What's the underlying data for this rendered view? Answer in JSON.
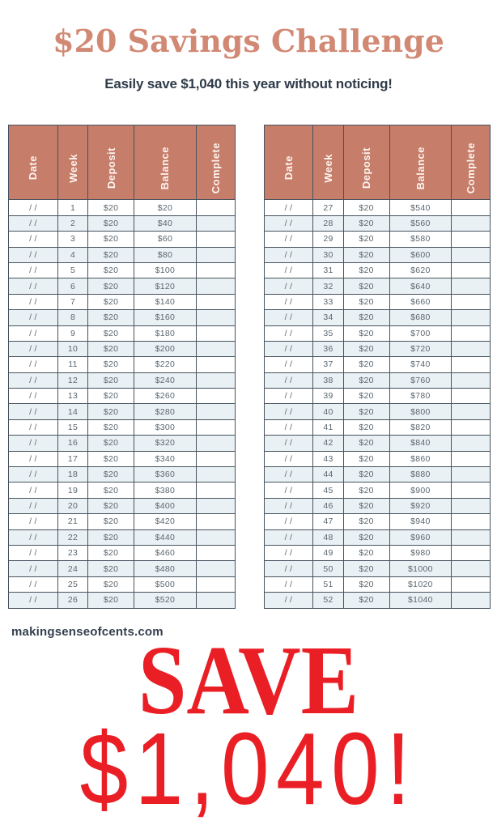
{
  "page": {
    "title": "$20 Savings Challenge",
    "subtitle": "Easily save $1,040 this year without noticing!",
    "website": "makingsenseofcents.com",
    "save_word": "SAVE",
    "save_amount": "$1,040!"
  },
  "colors": {
    "title_salmon": "#d28974",
    "header_salmon": "#c67d6a",
    "navy_text": "#2f3b49",
    "cell_text": "#5b6770",
    "row_alt": "#eaf1f4",
    "table_border": "#46535f",
    "red": "#ea1f25",
    "header_label_text": "#fdf4ef"
  },
  "tables": {
    "headers": [
      "Date",
      "Week",
      "Deposit",
      "Balance",
      "Complete"
    ],
    "column_widths": [
      "21.8%",
      "13.3%",
      "20.4%",
      "27.4%",
      "17.1%"
    ],
    "date_placeholder": "/ /",
    "left": {
      "rows": [
        {
          "date": "/ /",
          "week": "1",
          "deposit": "$20",
          "balance": "$20",
          "complete": ""
        },
        {
          "date": "/ /",
          "week": "2",
          "deposit": "$20",
          "balance": "$40",
          "complete": ""
        },
        {
          "date": "/ /",
          "week": "3",
          "deposit": "$20",
          "balance": "$60",
          "complete": ""
        },
        {
          "date": "/ /",
          "week": "4",
          "deposit": "$20",
          "balance": "$80",
          "complete": ""
        },
        {
          "date": "/ /",
          "week": "5",
          "deposit": "$20",
          "balance": "$100",
          "complete": ""
        },
        {
          "date": "/ /",
          "week": "6",
          "deposit": "$20",
          "balance": "$120",
          "complete": ""
        },
        {
          "date": "/ /",
          "week": "7",
          "deposit": "$20",
          "balance": "$140",
          "complete": ""
        },
        {
          "date": "/ /",
          "week": "8",
          "deposit": "$20",
          "balance": "$160",
          "complete": ""
        },
        {
          "date": "/ /",
          "week": "9",
          "deposit": "$20",
          "balance": "$180",
          "complete": ""
        },
        {
          "date": "/ /",
          "week": "10",
          "deposit": "$20",
          "balance": "$200",
          "complete": ""
        },
        {
          "date": "/ /",
          "week": "11",
          "deposit": "$20",
          "balance": "$220",
          "complete": ""
        },
        {
          "date": "/ /",
          "week": "12",
          "deposit": "$20",
          "balance": "$240",
          "complete": ""
        },
        {
          "date": "/ /",
          "week": "13",
          "deposit": "$20",
          "balance": "$260",
          "complete": ""
        },
        {
          "date": "/ /",
          "week": "14",
          "deposit": "$20",
          "balance": "$280",
          "complete": ""
        },
        {
          "date": "/ /",
          "week": "15",
          "deposit": "$20",
          "balance": "$300",
          "complete": ""
        },
        {
          "date": "/ /",
          "week": "16",
          "deposit": "$20",
          "balance": "$320",
          "complete": ""
        },
        {
          "date": "/ /",
          "week": "17",
          "deposit": "$20",
          "balance": "$340",
          "complete": ""
        },
        {
          "date": "/ /",
          "week": "18",
          "deposit": "$20",
          "balance": "$360",
          "complete": ""
        },
        {
          "date": "/ /",
          "week": "19",
          "deposit": "$20",
          "balance": "$380",
          "complete": ""
        },
        {
          "date": "/ /",
          "week": "20",
          "deposit": "$20",
          "balance": "$400",
          "complete": ""
        },
        {
          "date": "/ /",
          "week": "21",
          "deposit": "$20",
          "balance": "$420",
          "complete": ""
        },
        {
          "date": "/ /",
          "week": "22",
          "deposit": "$20",
          "balance": "$440",
          "complete": ""
        },
        {
          "date": "/ /",
          "week": "23",
          "deposit": "$20",
          "balance": "$460",
          "complete": ""
        },
        {
          "date": "/ /",
          "week": "24",
          "deposit": "$20",
          "balance": "$480",
          "complete": ""
        },
        {
          "date": "/ /",
          "week": "25",
          "deposit": "$20",
          "balance": "$500",
          "complete": ""
        },
        {
          "date": "/ /",
          "week": "26",
          "deposit": "$20",
          "balance": "$520",
          "complete": ""
        }
      ]
    },
    "right": {
      "rows": [
        {
          "date": "/ /",
          "week": "27",
          "deposit": "$20",
          "balance": "$540",
          "complete": ""
        },
        {
          "date": "/ /",
          "week": "28",
          "deposit": "$20",
          "balance": "$560",
          "complete": ""
        },
        {
          "date": "/ /",
          "week": "29",
          "deposit": "$20",
          "balance": "$580",
          "complete": ""
        },
        {
          "date": "/ /",
          "week": "30",
          "deposit": "$20",
          "balance": "$600",
          "complete": ""
        },
        {
          "date": "/ /",
          "week": "31",
          "deposit": "$20",
          "balance": "$620",
          "complete": ""
        },
        {
          "date": "/ /",
          "week": "32",
          "deposit": "$20",
          "balance": "$640",
          "complete": ""
        },
        {
          "date": "/ /",
          "week": "33",
          "deposit": "$20",
          "balance": "$660",
          "complete": ""
        },
        {
          "date": "/ /",
          "week": "34",
          "deposit": "$20",
          "balance": "$680",
          "complete": ""
        },
        {
          "date": "/ /",
          "week": "35",
          "deposit": "$20",
          "balance": "$700",
          "complete": ""
        },
        {
          "date": "/ /",
          "week": "36",
          "deposit": "$20",
          "balance": "$720",
          "complete": ""
        },
        {
          "date": "/ /",
          "week": "37",
          "deposit": "$20",
          "balance": "$740",
          "complete": ""
        },
        {
          "date": "/ /",
          "week": "38",
          "deposit": "$20",
          "balance": "$760",
          "complete": ""
        },
        {
          "date": "/ /",
          "week": "39",
          "deposit": "$20",
          "balance": "$780",
          "complete": ""
        },
        {
          "date": "/ /",
          "week": "40",
          "deposit": "$20",
          "balance": "$800",
          "complete": ""
        },
        {
          "date": "/ /",
          "week": "41",
          "deposit": "$20",
          "balance": "$820",
          "complete": ""
        },
        {
          "date": "/ /",
          "week": "42",
          "deposit": "$20",
          "balance": "$840",
          "complete": ""
        },
        {
          "date": "/ /",
          "week": "43",
          "deposit": "$20",
          "balance": "$860",
          "complete": ""
        },
        {
          "date": "/ /",
          "week": "44",
          "deposit": "$20",
          "balance": "$880",
          "complete": ""
        },
        {
          "date": "/ /",
          "week": "45",
          "deposit": "$20",
          "balance": "$900",
          "complete": ""
        },
        {
          "date": "/ /",
          "week": "46",
          "deposit": "$20",
          "balance": "$920",
          "complete": ""
        },
        {
          "date": "/ /",
          "week": "47",
          "deposit": "$20",
          "balance": "$940",
          "complete": ""
        },
        {
          "date": "/ /",
          "week": "48",
          "deposit": "$20",
          "balance": "$960",
          "complete": ""
        },
        {
          "date": "/ /",
          "week": "49",
          "deposit": "$20",
          "balance": "$980",
          "complete": ""
        },
        {
          "date": "/ /",
          "week": "50",
          "deposit": "$20",
          "balance": "$1000",
          "complete": ""
        },
        {
          "date": "/ /",
          "week": "51",
          "deposit": "$20",
          "balance": "$1020",
          "complete": ""
        },
        {
          "date": "/ /",
          "week": "52",
          "deposit": "$20",
          "balance": "$1040",
          "complete": ""
        }
      ]
    }
  }
}
